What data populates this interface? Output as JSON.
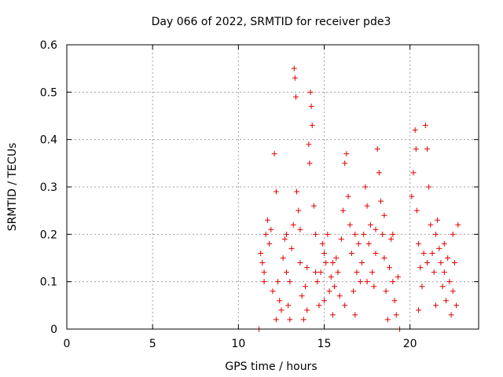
{
  "chart_data": {
    "type": "scatter",
    "title": "Day 066 of 2022, SRMTID for receiver pde3",
    "xlabel": "GPS time / hours",
    "ylabel": "SRMTID / TECUs",
    "xlim": [
      0,
      24
    ],
    "ylim": [
      0,
      0.6
    ],
    "xticks": [
      0,
      5,
      10,
      15,
      20
    ],
    "xtick_labels": [
      "0",
      "5",
      "10",
      "15",
      "20"
    ],
    "yticks": [
      0,
      0.1,
      0.2,
      0.3,
      0.4,
      0.5,
      0.6
    ],
    "ytick_labels": [
      "0",
      "0.1",
      "0.2",
      "0.3",
      "0.4",
      "0.5",
      "0.6"
    ],
    "grid": true,
    "marker": "+",
    "series": [
      {
        "name": "SRMTID",
        "color": "#e00000",
        "points": [
          [
            11.2,
            0.0
          ],
          [
            11.3,
            0.16
          ],
          [
            11.4,
            0.14
          ],
          [
            11.5,
            0.12
          ],
          [
            11.6,
            0.2
          ],
          [
            11.7,
            0.23
          ],
          [
            11.8,
            0.18
          ],
          [
            11.9,
            0.21
          ],
          [
            12.0,
            0.08
          ],
          [
            12.1,
            0.37
          ],
          [
            12.2,
            0.29
          ],
          [
            12.3,
            0.1
          ],
          [
            12.4,
            0.06
          ],
          [
            12.5,
            0.04
          ],
          [
            12.6,
            0.15
          ],
          [
            12.7,
            0.19
          ],
          [
            12.8,
            0.12
          ],
          [
            12.9,
            0.05
          ],
          [
            13.0,
            0.02
          ],
          [
            13.1,
            0.17
          ],
          [
            13.2,
            0.22
          ],
          [
            13.25,
            0.55
          ],
          [
            13.3,
            0.53
          ],
          [
            13.35,
            0.49
          ],
          [
            13.4,
            0.29
          ],
          [
            13.5,
            0.25
          ],
          [
            13.6,
            0.21
          ],
          [
            13.7,
            0.07
          ],
          [
            13.8,
            0.02
          ],
          [
            13.9,
            0.09
          ],
          [
            14.0,
            0.13
          ],
          [
            14.1,
            0.39
          ],
          [
            14.15,
            0.35
          ],
          [
            14.2,
            0.5
          ],
          [
            14.25,
            0.47
          ],
          [
            14.3,
            0.43
          ],
          [
            14.4,
            0.26
          ],
          [
            14.5,
            0.2
          ],
          [
            14.6,
            0.1
          ],
          [
            14.7,
            0.05
          ],
          [
            14.8,
            0.12
          ],
          [
            14.9,
            0.18
          ],
          [
            15.0,
            0.06
          ],
          [
            15.1,
            0.14
          ],
          [
            15.2,
            0.2
          ],
          [
            15.3,
            0.08
          ],
          [
            15.4,
            0.11
          ],
          [
            15.5,
            0.03
          ],
          [
            15.6,
            0.09
          ],
          [
            15.7,
            0.15
          ],
          [
            15.8,
            0.12
          ],
          [
            15.9,
            0.07
          ],
          [
            16.0,
            0.19
          ],
          [
            16.1,
            0.25
          ],
          [
            16.2,
            0.35
          ],
          [
            16.3,
            0.37
          ],
          [
            16.4,
            0.28
          ],
          [
            16.5,
            0.22
          ],
          [
            16.6,
            0.16
          ],
          [
            16.7,
            0.08
          ],
          [
            16.8,
            0.03
          ],
          [
            16.9,
            0.12
          ],
          [
            17.0,
            0.18
          ],
          [
            17.1,
            0.1
          ],
          [
            17.2,
            0.14
          ],
          [
            17.3,
            0.2
          ],
          [
            17.4,
            0.3
          ],
          [
            17.5,
            0.26
          ],
          [
            17.6,
            0.18
          ],
          [
            17.7,
            0.22
          ],
          [
            17.8,
            0.12
          ],
          [
            17.9,
            0.09
          ],
          [
            18.0,
            0.21
          ],
          [
            18.1,
            0.38
          ],
          [
            18.2,
            0.33
          ],
          [
            18.3,
            0.27
          ],
          [
            18.4,
            0.2
          ],
          [
            18.5,
            0.15
          ],
          [
            18.6,
            0.08
          ],
          [
            18.7,
            0.02
          ],
          [
            18.8,
            0.13
          ],
          [
            18.9,
            0.19
          ],
          [
            19.0,
            0.1
          ],
          [
            19.1,
            0.06
          ],
          [
            19.2,
            0.03
          ],
          [
            19.3,
            0.11
          ],
          [
            19.4,
            0.0
          ],
          [
            20.1,
            0.28
          ],
          [
            20.2,
            0.33
          ],
          [
            20.3,
            0.42
          ],
          [
            20.35,
            0.38
          ],
          [
            20.4,
            0.25
          ],
          [
            20.5,
            0.18
          ],
          [
            20.6,
            0.13
          ],
          [
            20.7,
            0.09
          ],
          [
            20.8,
            0.16
          ],
          [
            20.9,
            0.43
          ],
          [
            21.0,
            0.38
          ],
          [
            21.1,
            0.3
          ],
          [
            21.2,
            0.22
          ],
          [
            21.3,
            0.16
          ],
          [
            21.4,
            0.12
          ],
          [
            21.5,
            0.2
          ],
          [
            21.6,
            0.23
          ],
          [
            21.7,
            0.17
          ],
          [
            21.8,
            0.14
          ],
          [
            21.9,
            0.09
          ],
          [
            22.0,
            0.12
          ],
          [
            22.1,
            0.06
          ],
          [
            22.2,
            0.15
          ],
          [
            22.3,
            0.1
          ],
          [
            22.4,
            0.03
          ],
          [
            22.5,
            0.08
          ],
          [
            22.6,
            0.14
          ],
          [
            22.7,
            0.05
          ],
          [
            22.8,
            0.22
          ],
          [
            11.5,
            0.1
          ],
          [
            12.2,
            0.02
          ],
          [
            12.8,
            0.2
          ],
          [
            13.0,
            0.1
          ],
          [
            13.6,
            0.14
          ],
          [
            14.0,
            0.04
          ],
          [
            14.5,
            0.12
          ],
          [
            15.0,
            0.16
          ],
          [
            15.5,
            0.14
          ],
          [
            16.2,
            0.05
          ],
          [
            16.8,
            0.2
          ],
          [
            17.5,
            0.1
          ],
          [
            18.0,
            0.16
          ],
          [
            18.5,
            0.24
          ],
          [
            19.0,
            0.2
          ],
          [
            20.5,
            0.04
          ],
          [
            21.0,
            0.14
          ],
          [
            21.5,
            0.05
          ],
          [
            22.0,
            0.18
          ],
          [
            22.5,
            0.2
          ]
        ]
      }
    ]
  }
}
